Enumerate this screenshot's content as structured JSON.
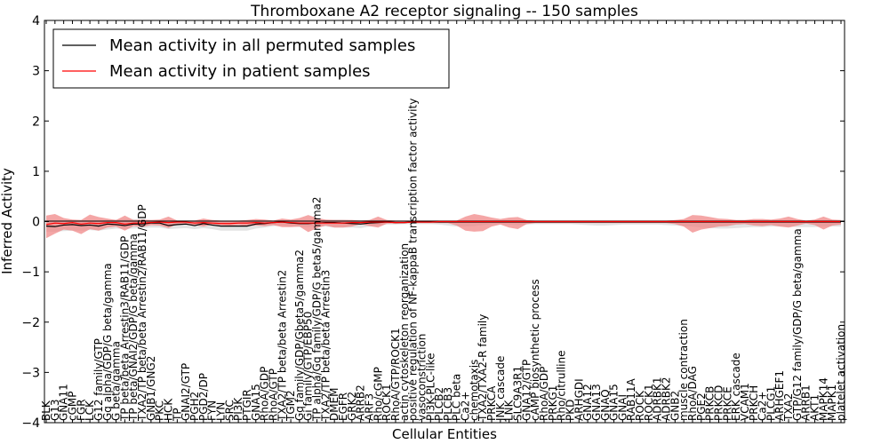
{
  "chart_data": {
    "type": "line",
    "title": "Thromboxane A2 receptor signaling -- 150 samples",
    "xlabel": "Cellular Entities",
    "ylabel": "Inferred Activity",
    "ylim": [
      -4,
      4
    ],
    "yticks": [
      -4,
      -3,
      -2,
      -1,
      0,
      1,
      2,
      3,
      4
    ],
    "ytick_labels": [
      "−4",
      "−3",
      "−2",
      "−1",
      "0",
      "1",
      "2",
      "3",
      "4"
    ],
    "legend_position": "top-left",
    "categories": [
      "BLK",
      "G13",
      "GNA11",
      "cGMP",
      "FGR",
      "LCK",
      "G12 family/GTP",
      "Gq alpha/GDP/G beta/gamma",
      "G beta/gamma",
      "TP beta/beta Arrestin3/RAB11/GDP",
      "TP beta/GNAI2/GDP/G beta/gamma",
      "TXA2/TP beta/beta Arrestin2/RAB11/GDP",
      "GNB1/GNG2",
      "PKC",
      "HCK",
      "TP",
      "GNAI2/GTP",
      "PGH2",
      "PGD2/DP",
      "FYN",
      "LYN",
      "SRC",
      "PI3K",
      "PTGIR",
      "GNA15",
      "RhoA/GDP",
      "RhoA/GTP",
      "TXA2/TP beta/beta Arrestin2",
      "TGM2",
      "Gq family/GDP/Gbeta5/gamma2",
      "Gi family/GTP/EBP50",
      "TP alpha/Gq family/GDP/G beta5/gamma2",
      "TXA2/TP beta/beta Arrestin3",
      "DMEM",
      "EGFR",
      "GRK2",
      "ARRB2",
      "ARF3",
      "Rho/cGMP",
      "ROCK1",
      "RhoA/GTP/ROCK1",
      "actin cytoskeleton reorganization",
      "positive regulation of NF-kappaB transcription factor activity",
      "vasoconstriction",
      "PI3K-PLC-like",
      "PLCB2",
      "PLCB3",
      "PLC beta",
      "Ca2+",
      "chemotaxis",
      "TXA2/TXA2-R family",
      "PRKCA",
      "JNK cascade",
      "LNK",
      "SLC9A3R1",
      "GNA12/GTP",
      "cAMP biosynthetic process",
      "RhoA/GDP",
      "PRKG1",
      "Rho/citrulline",
      "PKD",
      "ARHGDI",
      "GNA12",
      "GNA13",
      "GNAQ",
      "GNA15",
      "GNAI",
      "RAB11A",
      "ROCK",
      "ROCK1",
      "ADRBK1",
      "ADRBK2",
      "GNB2",
      "muscle contraction",
      "RhoA/DAG",
      "PGE2",
      "PRKCB",
      "PRKCD",
      "PRKCE",
      "ERK cascade",
      "VCAM1",
      "PRKCH",
      "Ca2+",
      "PLCG1",
      "ARHGEF1",
      "TXA2",
      "GTP/G12 family/GDP/G beta/gamma",
      "ARRB1",
      "AKT1",
      "MAPK14",
      "MAPK1",
      "platelet activation"
    ],
    "series": [
      {
        "name": "Mean activity in all permuted samples",
        "color": "#000000",
        "values": [
          -0.09,
          -0.1,
          -0.07,
          -0.06,
          -0.08,
          -0.07,
          -0.09,
          -0.05,
          -0.06,
          -0.08,
          -0.05,
          -0.05,
          -0.03,
          -0.03,
          -0.08,
          -0.06,
          -0.05,
          -0.08,
          -0.04,
          -0.07,
          -0.09,
          -0.09,
          -0.09,
          -0.09,
          -0.05,
          -0.04,
          -0.02,
          -0.01,
          -0.03,
          -0.04,
          -0.04,
          -0.03,
          -0.02,
          -0.02,
          -0.03,
          -0.04,
          -0.05,
          -0.03,
          -0.02,
          -0.01,
          -0.02,
          -0.02,
          -0.01,
          -0.01,
          -0.01,
          -0.01,
          -0.01,
          -0.01,
          -0.01,
          -0.01,
          -0.01,
          -0.01,
          -0.01,
          -0.01,
          -0.01,
          -0.01,
          -0.01,
          -0.01,
          -0.01,
          -0.01,
          -0.01,
          -0.01,
          -0.01,
          -0.01,
          -0.01,
          -0.01,
          -0.01,
          -0.01,
          -0.01,
          -0.01,
          -0.01,
          -0.01,
          -0.01,
          -0.01,
          -0.01,
          -0.01,
          -0.01,
          -0.01,
          -0.01,
          -0.01,
          -0.01,
          -0.01,
          -0.01,
          -0.01,
          -0.01,
          -0.01,
          -0.01,
          -0.01,
          -0.01,
          -0.01,
          -0.01,
          -0.01
        ]
      },
      {
        "name": "Mean activity in patient samples",
        "color": "#ff0000",
        "values": [
          -0.06,
          -0.03,
          -0.04,
          -0.02,
          -0.05,
          -0.03,
          -0.04,
          -0.02,
          -0.02,
          -0.05,
          -0.03,
          -0.03,
          -0.02,
          -0.01,
          -0.02,
          -0.01,
          -0.01,
          -0.03,
          -0.02,
          -0.03,
          -0.04,
          -0.04,
          -0.03,
          -0.03,
          -0.02,
          -0.03,
          -0.02,
          -0.01,
          -0.02,
          -0.03,
          -0.03,
          -0.03,
          -0.03,
          -0.03,
          -0.03,
          -0.02,
          -0.02,
          -0.01,
          -0.01,
          -0.01,
          -0.02,
          -0.02,
          -0.01,
          -0.01,
          -0.01,
          0.0,
          0.0,
          0.0,
          0.0,
          0.0,
          0.0,
          0.0,
          0.0,
          0.0,
          0.0,
          0.0,
          0.0,
          0.0,
          0.0,
          0.0,
          0.0,
          0.0,
          0.0,
          0.0,
          0.0,
          0.0,
          0.0,
          0.0,
          0.0,
          0.0,
          0.0,
          0.0,
          0.0,
          0.0,
          0.0,
          0.0,
          0.0,
          0.0,
          0.0,
          0.0,
          0.0,
          0.0,
          0.0,
          0.0,
          0.0,
          0.0,
          0.0,
          0.0,
          0.0,
          0.0,
          0.0,
          0.0
        ]
      }
    ],
    "bands": [
      {
        "name": "permuted-spread",
        "color": "#b0b0b0",
        "upper": [
          0.02,
          0.02,
          0.02,
          0.03,
          0.03,
          0.02,
          0.02,
          0.03,
          0.04,
          0.05,
          0.05,
          0.03,
          0.03,
          0.03,
          0.03,
          0.03,
          0.03,
          0.03,
          0.03,
          0.03,
          0.02,
          0.02,
          0.02,
          0.02,
          0.02,
          0.02,
          0.02,
          0.03,
          0.03,
          0.03,
          0.03,
          0.03,
          0.03,
          0.04,
          0.04,
          0.03,
          0.03,
          0.03,
          0.03,
          0.03,
          0.02,
          0.02,
          0.02,
          0.02,
          0.02,
          0.02,
          0.02,
          0.02,
          0.02,
          0.02,
          0.02,
          0.02,
          0.02,
          0.02,
          0.02,
          0.02,
          0.02,
          0.02,
          0.02,
          0.02,
          0.02,
          0.02,
          0.02,
          0.02,
          0.02,
          0.02,
          0.02,
          0.02,
          0.02,
          0.02,
          0.02,
          0.02,
          0.02,
          0.02,
          0.02,
          0.02,
          0.02,
          0.02,
          0.02,
          0.02,
          0.02,
          0.02,
          0.02,
          0.02,
          0.02,
          0.02,
          0.02,
          0.02,
          0.02,
          0.02,
          0.02,
          0.02
        ],
        "lower": [
          -0.2,
          -0.2,
          -0.19,
          -0.18,
          -0.18,
          -0.17,
          -0.18,
          -0.16,
          -0.14,
          -0.15,
          -0.14,
          -0.13,
          -0.12,
          -0.12,
          -0.15,
          -0.14,
          -0.13,
          -0.15,
          -0.13,
          -0.15,
          -0.18,
          -0.18,
          -0.18,
          -0.18,
          -0.14,
          -0.12,
          -0.09,
          -0.08,
          -0.1,
          -0.11,
          -0.11,
          -0.1,
          -0.1,
          -0.12,
          -0.12,
          -0.12,
          -0.13,
          -0.1,
          -0.08,
          -0.06,
          -0.06,
          -0.05,
          -0.05,
          -0.05,
          -0.05,
          -0.06,
          -0.08,
          -0.1,
          -0.1,
          -0.09,
          -0.07,
          -0.05,
          -0.05,
          -0.06,
          -0.07,
          -0.06,
          -0.05,
          -0.05,
          -0.05,
          -0.05,
          -0.05,
          -0.06,
          -0.07,
          -0.08,
          -0.08,
          -0.07,
          -0.06,
          -0.06,
          -0.06,
          -0.06,
          -0.06,
          -0.07,
          -0.08,
          -0.09,
          -0.1,
          -0.12,
          -0.13,
          -0.14,
          -0.14,
          -0.13,
          -0.12,
          -0.11,
          -0.11,
          -0.1,
          -0.1,
          -0.1,
          -0.11,
          -0.11,
          -0.11,
          -0.1,
          -0.1,
          -0.1
        ]
      },
      {
        "name": "patient-spread",
        "color": "#f08080",
        "upper": [
          0.12,
          0.15,
          0.07,
          0.04,
          0.03,
          0.14,
          0.09,
          0.06,
          0.03,
          0.12,
          0.03,
          0.04,
          0.03,
          0.04,
          0.1,
          0.02,
          0.02,
          0.02,
          0.06,
          0.03,
          0.02,
          0.02,
          0.02,
          0.03,
          0.05,
          0.04,
          0.02,
          0.06,
          0.04,
          0.07,
          0.13,
          0.07,
          0.04,
          0.03,
          0.03,
          0.03,
          0.02,
          0.03,
          0.1,
          0.03,
          0.02,
          0.02,
          0.02,
          0.02,
          0.02,
          0.02,
          0.02,
          0.02,
          0.1,
          0.15,
          0.12,
          0.08,
          0.05,
          0.08,
          0.09,
          0.03,
          0.02,
          0.02,
          0.02,
          0.02,
          0.02,
          0.02,
          0.02,
          0.02,
          0.02,
          0.02,
          0.02,
          0.02,
          0.02,
          0.02,
          0.02,
          0.02,
          0.03,
          0.05,
          0.13,
          0.12,
          0.09,
          0.06,
          0.05,
          0.03,
          0.03,
          0.05,
          0.05,
          0.04,
          0.06,
          0.1,
          0.05,
          0.02,
          0.04,
          0.1,
          0.04,
          0.03
        ],
        "lower": [
          -0.33,
          -0.24,
          -0.16,
          -0.18,
          -0.25,
          -0.15,
          -0.18,
          -0.12,
          -0.1,
          -0.18,
          -0.09,
          -0.11,
          -0.07,
          -0.08,
          -0.13,
          -0.05,
          -0.05,
          -0.07,
          -0.1,
          -0.06,
          -0.07,
          -0.08,
          -0.07,
          -0.09,
          -0.08,
          -0.09,
          -0.07,
          -0.11,
          -0.11,
          -0.1,
          -0.21,
          -0.13,
          -0.08,
          -0.12,
          -0.12,
          -0.1,
          -0.05,
          -0.09,
          -0.12,
          -0.04,
          -0.04,
          -0.03,
          -0.03,
          -0.03,
          -0.03,
          -0.03,
          -0.03,
          -0.08,
          -0.18,
          -0.2,
          -0.19,
          -0.1,
          -0.06,
          -0.12,
          -0.15,
          -0.05,
          -0.03,
          -0.03,
          -0.03,
          -0.03,
          -0.03,
          -0.03,
          -0.03,
          -0.03,
          -0.03,
          -0.03,
          -0.03,
          -0.03,
          -0.03,
          -0.03,
          -0.03,
          -0.03,
          -0.05,
          -0.1,
          -0.22,
          -0.16,
          -0.13,
          -0.1,
          -0.09,
          -0.06,
          -0.05,
          -0.08,
          -0.09,
          -0.07,
          -0.1,
          -0.12,
          -0.08,
          -0.04,
          -0.07,
          -0.16,
          -0.08,
          -0.06
        ]
      }
    ]
  }
}
